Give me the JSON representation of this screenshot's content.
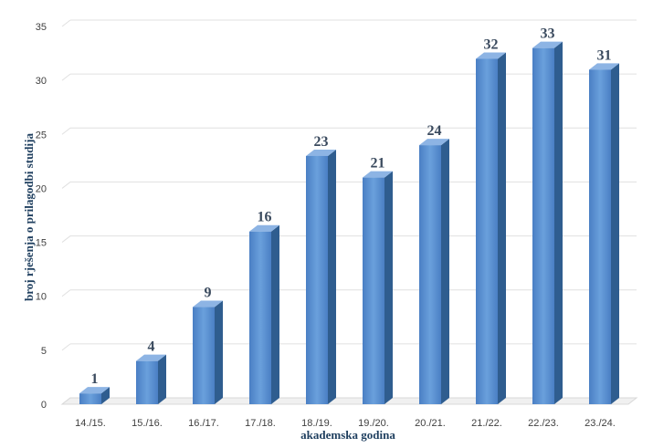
{
  "chart_data": {
    "type": "bar",
    "title": "",
    "xlabel": "akademska godina",
    "ylabel": "broj rješenja o prilagodbi studija",
    "categories": [
      "14./15.",
      "15./16.",
      "16./17.",
      "17./18.",
      "18./19.",
      "19./20.",
      "20./21.",
      "21./22.",
      "22./23.",
      "23./24."
    ],
    "values": [
      1,
      4,
      9,
      16,
      23,
      21,
      24,
      32,
      33,
      31
    ],
    "ylim": [
      0,
      35
    ],
    "yticks": [
      0,
      5,
      10,
      15,
      20,
      25,
      30,
      35
    ],
    "grid": true,
    "legend": "none",
    "colors": {
      "bar_front": "#5b8fd1",
      "bar_side": "#2f5d8f",
      "bar_top": "#8db4e4",
      "gridline": "#e0e0e0",
      "label": "#3a4a5e"
    }
  }
}
